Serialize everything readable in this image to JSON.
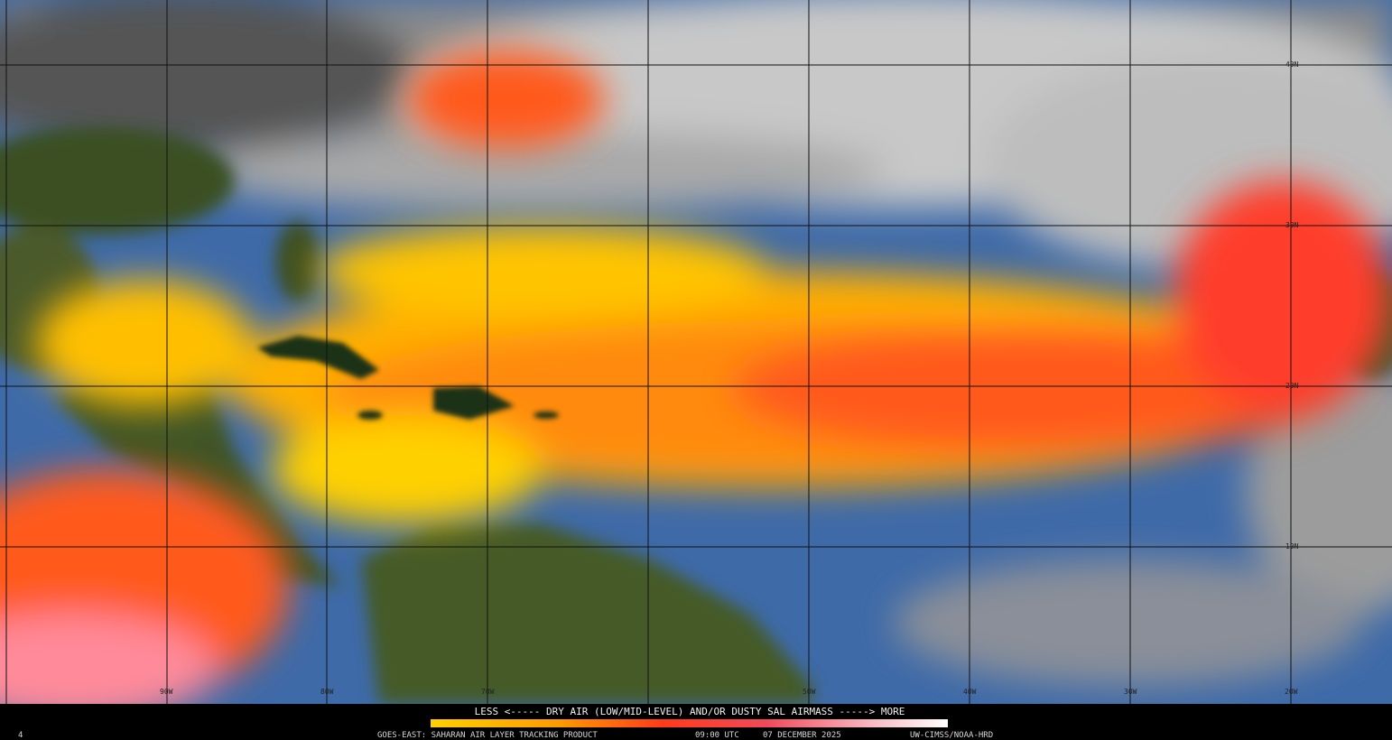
{
  "map": {
    "lat_labels": [
      "40N",
      "30N",
      "20N",
      "10N"
    ],
    "lon_labels": [
      "90W",
      "80W",
      "70W",
      "50W",
      "40W",
      "30W",
      "20W"
    ]
  },
  "legend": {
    "caption": "LESS <----- DRY AIR (LOW/MID-LEVEL) AND/OR DUSTY SAL AIRMASS -----> MORE"
  },
  "footer": {
    "frame": "4",
    "product": "GOES-EAST: SAHARAN AIR LAYER TRACKING PRODUCT",
    "time": "09:00 UTC",
    "date": "07 DECEMBER 2025",
    "credit": "UW-CIMSS/NOAA-HRD"
  }
}
